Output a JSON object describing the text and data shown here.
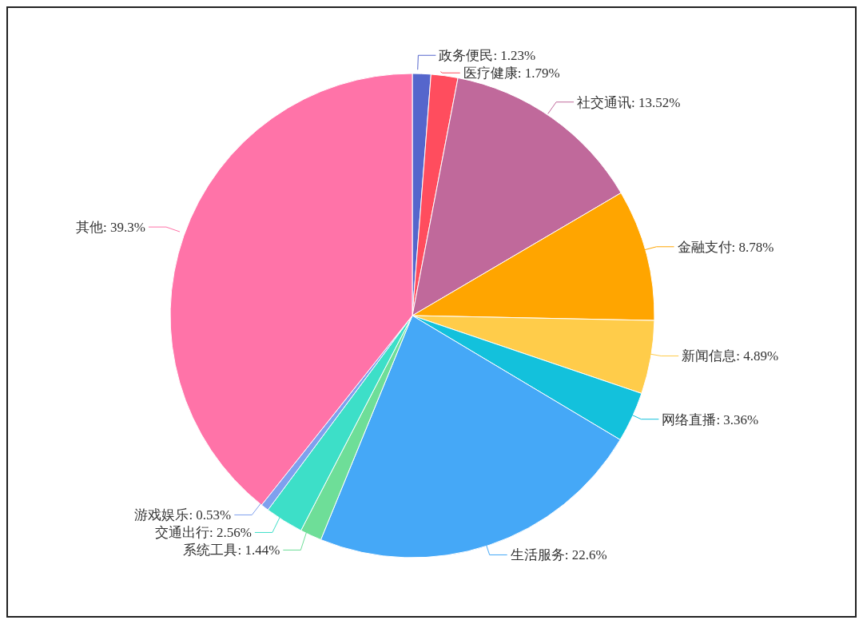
{
  "chart_data": {
    "type": "pie",
    "categories": [
      "政务便民",
      "医疗健康",
      "社交通讯",
      "金融支付",
      "新闻信息",
      "网络直播",
      "生活服务",
      "系统工具",
      "交通出行",
      "游戏娱乐",
      "其他"
    ],
    "values": [
      1.23,
      1.79,
      13.52,
      8.78,
      4.89,
      3.36,
      22.6,
      1.44,
      2.56,
      0.53,
      39.3
    ],
    "value_labels": [
      "1.23%",
      "1.79%",
      "13.52%",
      "8.78%",
      "4.89%",
      "3.36%",
      "22.6%",
      "1.44%",
      "2.56%",
      "0.53%",
      "39.3%"
    ],
    "colors": [
      "#5566cc",
      "#ff4d5e",
      "#c0699b",
      "#ffa500",
      "#ffcc4a",
      "#13c1dc",
      "#45a8f7",
      "#6ede98",
      "#3ddfc8",
      "#7fa0ee",
      "#ff73a8"
    ]
  }
}
